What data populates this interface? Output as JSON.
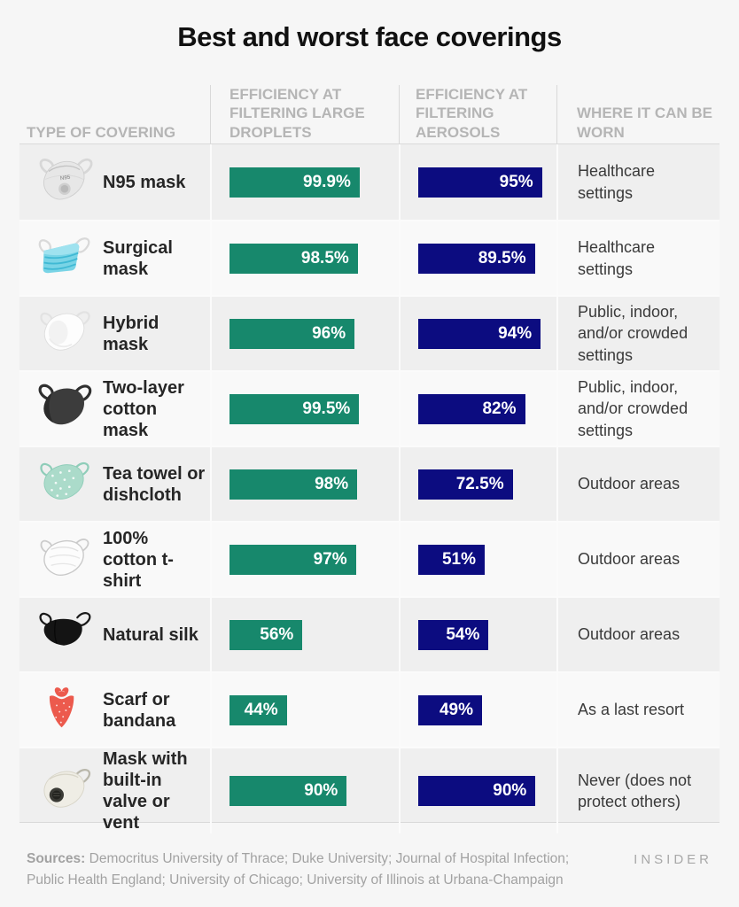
{
  "title": "Best and worst face coverings",
  "columns": {
    "type": "Type of covering",
    "droplets": "Efficiency at filtering large droplets",
    "aerosols": "Efficiency at filtering aerosols",
    "where": "Where it can be worn"
  },
  "colors": {
    "droplets_bar": "#17886c",
    "aerosols_bar": "#0c0c80",
    "bar_label": "#ffffff",
    "background": "#f6f6f6",
    "row_alt": "#efefef"
  },
  "rows": [
    {
      "name": "N95 mask",
      "icon": "n95-mask",
      "droplets": 99.9,
      "droplets_label": "99.9%",
      "aerosols": 95,
      "aerosols_label": "95%",
      "where": "Healthcare settings"
    },
    {
      "name": "Surgical mask",
      "icon": "surgical-mask",
      "droplets": 98.5,
      "droplets_label": "98.5%",
      "aerosols": 89.5,
      "aerosols_label": "89.5%",
      "where": "Healthcare settings"
    },
    {
      "name": "Hybrid mask",
      "icon": "hybrid-mask",
      "droplets": 96,
      "droplets_label": "96%",
      "aerosols": 94,
      "aerosols_label": "94%",
      "where": "Public, indoor, and/or crowded settings"
    },
    {
      "name": "Two-layer cotton mask",
      "icon": "two-layer-cotton-mask",
      "droplets": 99.5,
      "droplets_label": "99.5%",
      "aerosols": 82,
      "aerosols_label": "82%",
      "where": "Public, indoor, and/or crowded settings"
    },
    {
      "name": "Tea towel or dishcloth",
      "icon": "tea-towel-mask",
      "droplets": 98,
      "droplets_label": "98%",
      "aerosols": 72.5,
      "aerosols_label": "72.5%",
      "where": "Outdoor areas"
    },
    {
      "name": "100% cotton t-shirt",
      "icon": "cotton-tshirt-mask",
      "droplets": 97,
      "droplets_label": "97%",
      "aerosols": 51,
      "aerosols_label": "51%",
      "where": "Outdoor areas"
    },
    {
      "name": "Natural silk",
      "icon": "natural-silk-mask",
      "droplets": 56,
      "droplets_label": "56%",
      "aerosols": 54,
      "aerosols_label": "54%",
      "where": "Outdoor areas"
    },
    {
      "name": "Scarf or bandana",
      "icon": "bandana",
      "droplets": 44,
      "droplets_label": "44%",
      "aerosols": 49,
      "aerosols_label": "49%",
      "where": "As a last resort"
    },
    {
      "name": "Mask with built-in valve or vent",
      "icon": "valve-mask",
      "droplets": 90,
      "droplets_label": "90%",
      "aerosols": 90,
      "aerosols_label": "90%",
      "where": "Never (does not protect others)"
    }
  ],
  "footer": {
    "sources_label": "Sources:",
    "sources_text": " Democritus University of Thrace; Duke University; Journal of Hospital Infection; Public Health England; University of Chicago; University of Illinois at Urbana-Champaign",
    "brand": "INSIDER"
  },
  "chart_data": {
    "type": "bar",
    "title": "Best and worst face coverings",
    "categories": [
      "N95 mask",
      "Surgical mask",
      "Hybrid mask",
      "Two-layer cotton mask",
      "Tea towel or dishcloth",
      "100% cotton t-shirt",
      "Natural silk",
      "Scarf or bandana",
      "Mask with built-in valve or vent"
    ],
    "series": [
      {
        "name": "Efficiency at filtering large droplets",
        "values": [
          99.9,
          98.5,
          96,
          99.5,
          98,
          97,
          56,
          44,
          90
        ],
        "color": "#17886c"
      },
      {
        "name": "Efficiency at filtering aerosols",
        "values": [
          95,
          89.5,
          94,
          82,
          72.5,
          51,
          54,
          49,
          90
        ],
        "color": "#0c0c80"
      }
    ],
    "annotations": [
      "Healthcare settings",
      "Healthcare settings",
      "Public, indoor, and/or crowded settings",
      "Public, indoor, and/or crowded settings",
      "Outdoor areas",
      "Outdoor areas",
      "Outdoor areas",
      "As a last resort",
      "Never (does not protect others)"
    ],
    "value_unit": "%",
    "xlim": [
      0,
      100
    ],
    "grid": false,
    "legend_position": "column-headers",
    "orientation": "horizontal",
    "data_labels": "inside-end"
  }
}
